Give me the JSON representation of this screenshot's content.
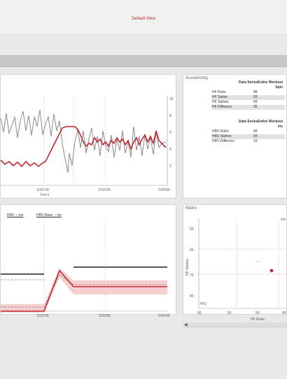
{
  "window": {
    "title": "Default View"
  },
  "colors": {
    "accent_red": "#c0282d",
    "gray_line": "#8a8a8a",
    "band": "#f3c6c6",
    "dashed_orange": "#e8b7a3"
  },
  "hr_chart": {
    "x_ticks": [
      "0:02:00",
      "0:03:00",
      "0:04:00"
    ],
    "x_unit": "h:m:s",
    "y_ticks_right": [
      "10",
      "8",
      "6",
      "4",
      "2"
    ]
  },
  "evaluation": {
    "title": "Auswertung",
    "block1": {
      "header": "Data SeriesEntire Workout",
      "unit": "bpm",
      "rows": [
        {
          "label": "HF Ruhe",
          "value": "48"
        },
        {
          "label": "HF Spitze",
          "value": "83"
        },
        {
          "label": "HF Stehen",
          "value": "69"
        },
        {
          "label": "HF Differenz",
          "value": "35"
        }
      ]
    },
    "block2": {
      "header": "Data SeriesEntire Workout",
      "unit": "ms",
      "rows": [
        {
          "label": "HRV Ruhe",
          "value": "49"
        },
        {
          "label": "HRV Stehen",
          "value": "58"
        },
        {
          "label": "HRV Differenz",
          "value": "10"
        }
      ]
    }
  },
  "baseline_chart": {
    "legend": [
      "HRV  -- ms",
      "HRV Base  -- ms"
    ],
    "x_ticks": [
      "0:02:00",
      "0:03:00",
      "0:04:00"
    ]
  },
  "matrix": {
    "title": "Matrix",
    "xlabel": "HF Ruhe",
    "ylabel": "HF Stehen",
    "x_ticks": [
      "60",
      "55",
      "50",
      "45"
    ],
    "y_ticks": [
      "50",
      "60",
      "70",
      "80"
    ],
    "corner_label": "HF1",
    "top_label": "mä"
  },
  "scroll": {
    "left_arrow": "◀"
  }
}
